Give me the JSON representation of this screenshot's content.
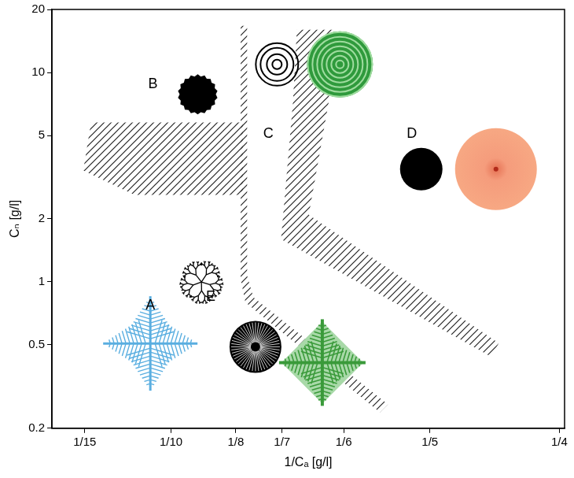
{
  "chart_data": {
    "type": "scatter",
    "xlabel": "1/Cₐ [g/l]",
    "ylabel": "Cₙ [g/l]",
    "log": "y",
    "grid": false,
    "xlim": [
      0.054,
      0.252
    ],
    "ylim": [
      0.2,
      20
    ],
    "xticks": [
      {
        "value": 0.0667,
        "label": "1/15"
      },
      {
        "value": 0.1,
        "label": "1/10"
      },
      {
        "value": 0.125,
        "label": "1/8"
      },
      {
        "value": 0.1429,
        "label": "1/7"
      },
      {
        "value": 0.1667,
        "label": "1/6"
      },
      {
        "value": 0.2,
        "label": "1/5"
      },
      {
        "value": 0.25,
        "label": "1/4"
      }
    ],
    "yticks": [
      0.2,
      0.5,
      1,
      2,
      5,
      10,
      20
    ],
    "regions": [
      {
        "label": "A",
        "x": 0.092,
        "y": 0.77
      },
      {
        "label": "B",
        "x": 0.093,
        "y": 8.8
      },
      {
        "label": "C",
        "x": 0.1376,
        "y": 5.1
      },
      {
        "label": "D",
        "x": 0.193,
        "y": 5.1
      },
      {
        "label": "E",
        "x": 0.1153,
        "y": 0.845
      }
    ],
    "boundaries": [
      {
        "x": [
          0.0691,
          0.1278,
          0.1278,
          0.0859,
          0.0661
        ],
        "y": [
          5.77,
          5.77,
          2.6,
          2.6,
          3.4
        ]
      },
      {
        "x": [
          0.1269,
          0.1294,
          0.1294,
          0.1318,
          0.1838,
          0.1807,
          0.1287,
          0.1269
        ],
        "y": [
          16.7,
          16.7,
          1.07,
          0.845,
          0.26,
          0.238,
          0.8,
          1.03
        ]
      },
      {
        "x": [
          0.1486,
          0.1624,
          0.1609,
          0.1532,
          0.2266,
          0.2235,
          0.1425,
          0.1471
        ],
        "y": [
          16.0,
          16.0,
          7.21,
          2.09,
          0.51,
          0.44,
          1.6,
          7.21
        ]
      }
    ]
  }
}
